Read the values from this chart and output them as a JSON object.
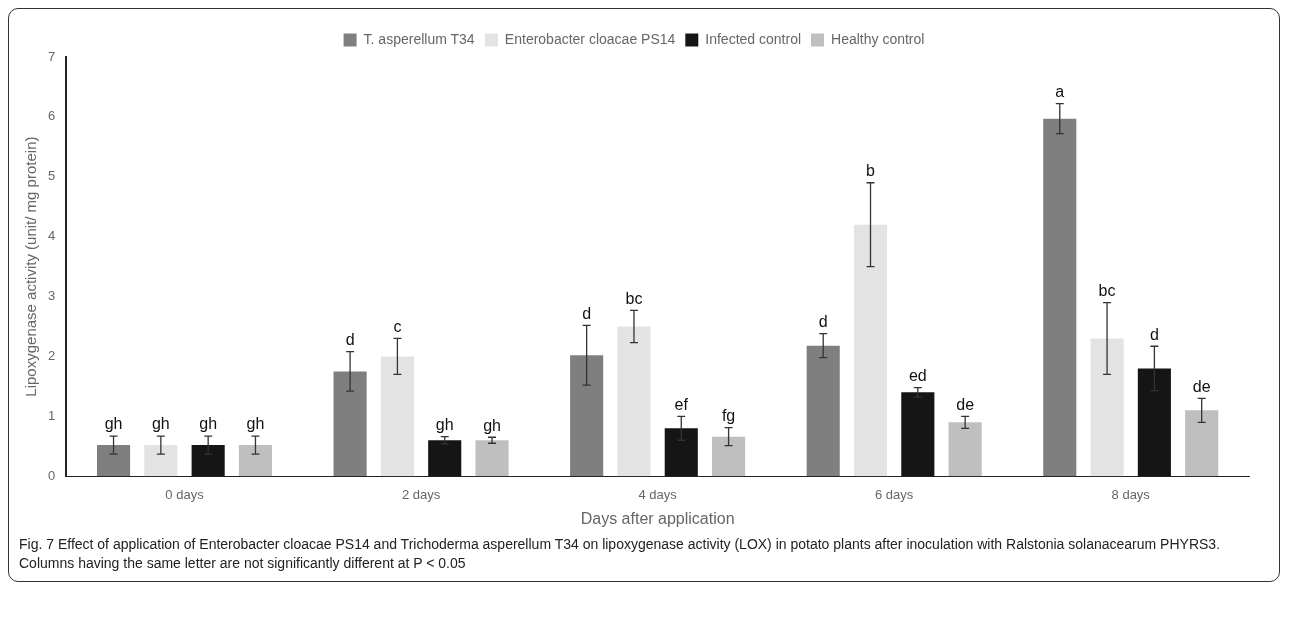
{
  "chart_data": {
    "type": "bar",
    "xlabel": "Days after application",
    "ylabel": "Lipoxygenase activity (unit/ mg protein)",
    "categories": [
      "0 days",
      "2 days",
      "4 days",
      "6 days",
      "8 days"
    ],
    "series": [
      {
        "name": "T. asperellum T34",
        "color": "#7f7f7f",
        "values": [
          0.52,
          1.75,
          2.02,
          2.18,
          5.97
        ],
        "errors": [
          0.15,
          0.33,
          0.5,
          0.2,
          0.25
        ],
        "value_labels": [
          "gh",
          "d",
          "d",
          "d",
          "a"
        ]
      },
      {
        "name": "Enterobacter cloacae PS14",
        "color": "#e3e3e3",
        "values": [
          0.52,
          2.0,
          2.5,
          4.2,
          2.3
        ],
        "errors": [
          0.15,
          0.3,
          0.27,
          0.7,
          0.6
        ],
        "value_labels": [
          "gh",
          "c",
          "bc",
          "b",
          "bc"
        ]
      },
      {
        "name": "Infected control",
        "color": "#151515",
        "values": [
          0.52,
          0.6,
          0.8,
          1.4,
          1.8
        ],
        "errors": [
          0.15,
          0.06,
          0.2,
          0.08,
          0.37
        ],
        "value_labels": [
          "gh",
          "gh",
          "ef",
          "ed",
          "d"
        ]
      },
      {
        "name": "Healthy control",
        "color": "#bfbfbf",
        "values": [
          0.52,
          0.6,
          0.66,
          0.9,
          1.1
        ],
        "errors": [
          0.15,
          0.05,
          0.15,
          0.1,
          0.2
        ],
        "value_labels": [
          "gh",
          "gh",
          "fg",
          "de",
          "de"
        ]
      }
    ],
    "ylim": [
      0,
      7
    ],
    "yticks": [
      0,
      1,
      2,
      3,
      4,
      5,
      6,
      7
    ],
    "grid": false,
    "legend": "top",
    "annotations": [
      "Fig. 7 Effect of application of Enterobacter cloacae PS14 and Trichoderma asperellum T34 on lipoxygenase activity (LOX) in potato plants after inoculation with Ralstonia solanacearum PHYRS3. Columns having the same letter are not significantly different at P < 0.05"
    ]
  }
}
